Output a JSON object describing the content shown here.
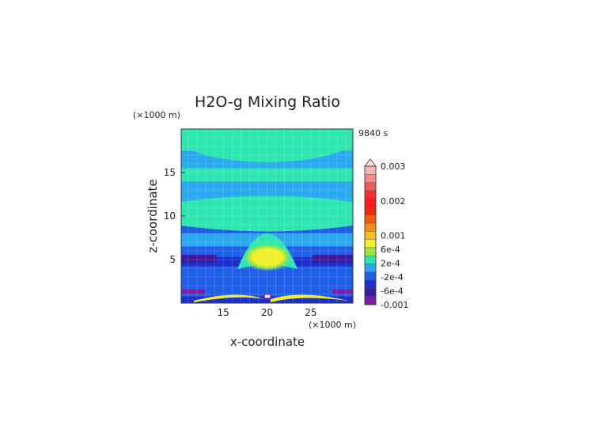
{
  "chart_data": {
    "type": "heatmap",
    "title": "H2O-g Mixing Ratio",
    "xlabel": "x-coordinate",
    "ylabel": "z-coordinate",
    "x_units": "(×1000 m)",
    "y_units": "(×1000 m)",
    "time_label": "9840 s",
    "xlim": [
      10.2,
      29.8
    ],
    "ylim": [
      0,
      20
    ],
    "x_ticks": [
      15,
      20,
      25
    ],
    "y_ticks": [
      5,
      10,
      15
    ],
    "grid": true,
    "legend_position": "right",
    "colorbar": {
      "levels": [
        {
          "color": "#7c1fa8"
        },
        {
          "color": "#3a1a9e"
        },
        {
          "color": "#1d2fd0"
        },
        {
          "color": "#1f5fe8"
        },
        {
          "color": "#2aa8f0"
        },
        {
          "color": "#2ee6b0"
        },
        {
          "color": "#9be640"
        },
        {
          "color": "#f2f02a"
        },
        {
          "color": "#f5c01e"
        },
        {
          "color": "#f58c1a"
        },
        {
          "color": "#f05a12"
        },
        {
          "color": "#ee2a10"
        },
        {
          "color": "#ff1a1a"
        },
        {
          "color": "#ee3030"
        },
        {
          "color": "#f05a5a"
        },
        {
          "color": "#f58c8c"
        },
        {
          "color": "#f8b4b4"
        }
      ],
      "labels": [
        {
          "text": "0.003",
          "pos": 0.0
        },
        {
          "text": "0.002",
          "pos": 0.25
        },
        {
          "text": "0.001",
          "pos": 0.5
        },
        {
          "text": "6e-4",
          "pos": 0.6
        },
        {
          "text": "2e-4",
          "pos": 0.7
        },
        {
          "text": "-2e-4",
          "pos": 0.8
        },
        {
          "text": "-6e-4",
          "pos": 0.9
        },
        {
          "text": "-0.001",
          "pos": 1.0
        }
      ]
    },
    "field_bands": [
      {
        "z": [
          0,
          0.8
        ],
        "color": "#1d2fd0"
      },
      {
        "z": [
          0.8,
          2
        ],
        "color": "#1f5fe8"
      },
      {
        "z": [
          2,
          4.2
        ],
        "color": "#1f5fe8"
      },
      {
        "z": [
          4.2,
          5.3
        ],
        "color": "#1d2fd0"
      },
      {
        "z": [
          5.3,
          6.5
        ],
        "color": "#1f5fe8"
      },
      {
        "z": [
          6.5,
          8
        ],
        "color": "#2aa8f0"
      },
      {
        "z": [
          8,
          9.5
        ],
        "color": "#1f5fe8"
      },
      {
        "z": [
          9.5,
          11.5
        ],
        "color": "#2ee6b0"
      },
      {
        "z": [
          11.5,
          14
        ],
        "color": "#2aa8f0"
      },
      {
        "z": [
          14,
          15.5
        ],
        "color": "#2ee6b0"
      },
      {
        "z": [
          15.5,
          17.5
        ],
        "color": "#2aa8f0"
      },
      {
        "z": [
          17.5,
          20
        ],
        "color": "#2ee6b0"
      }
    ]
  }
}
